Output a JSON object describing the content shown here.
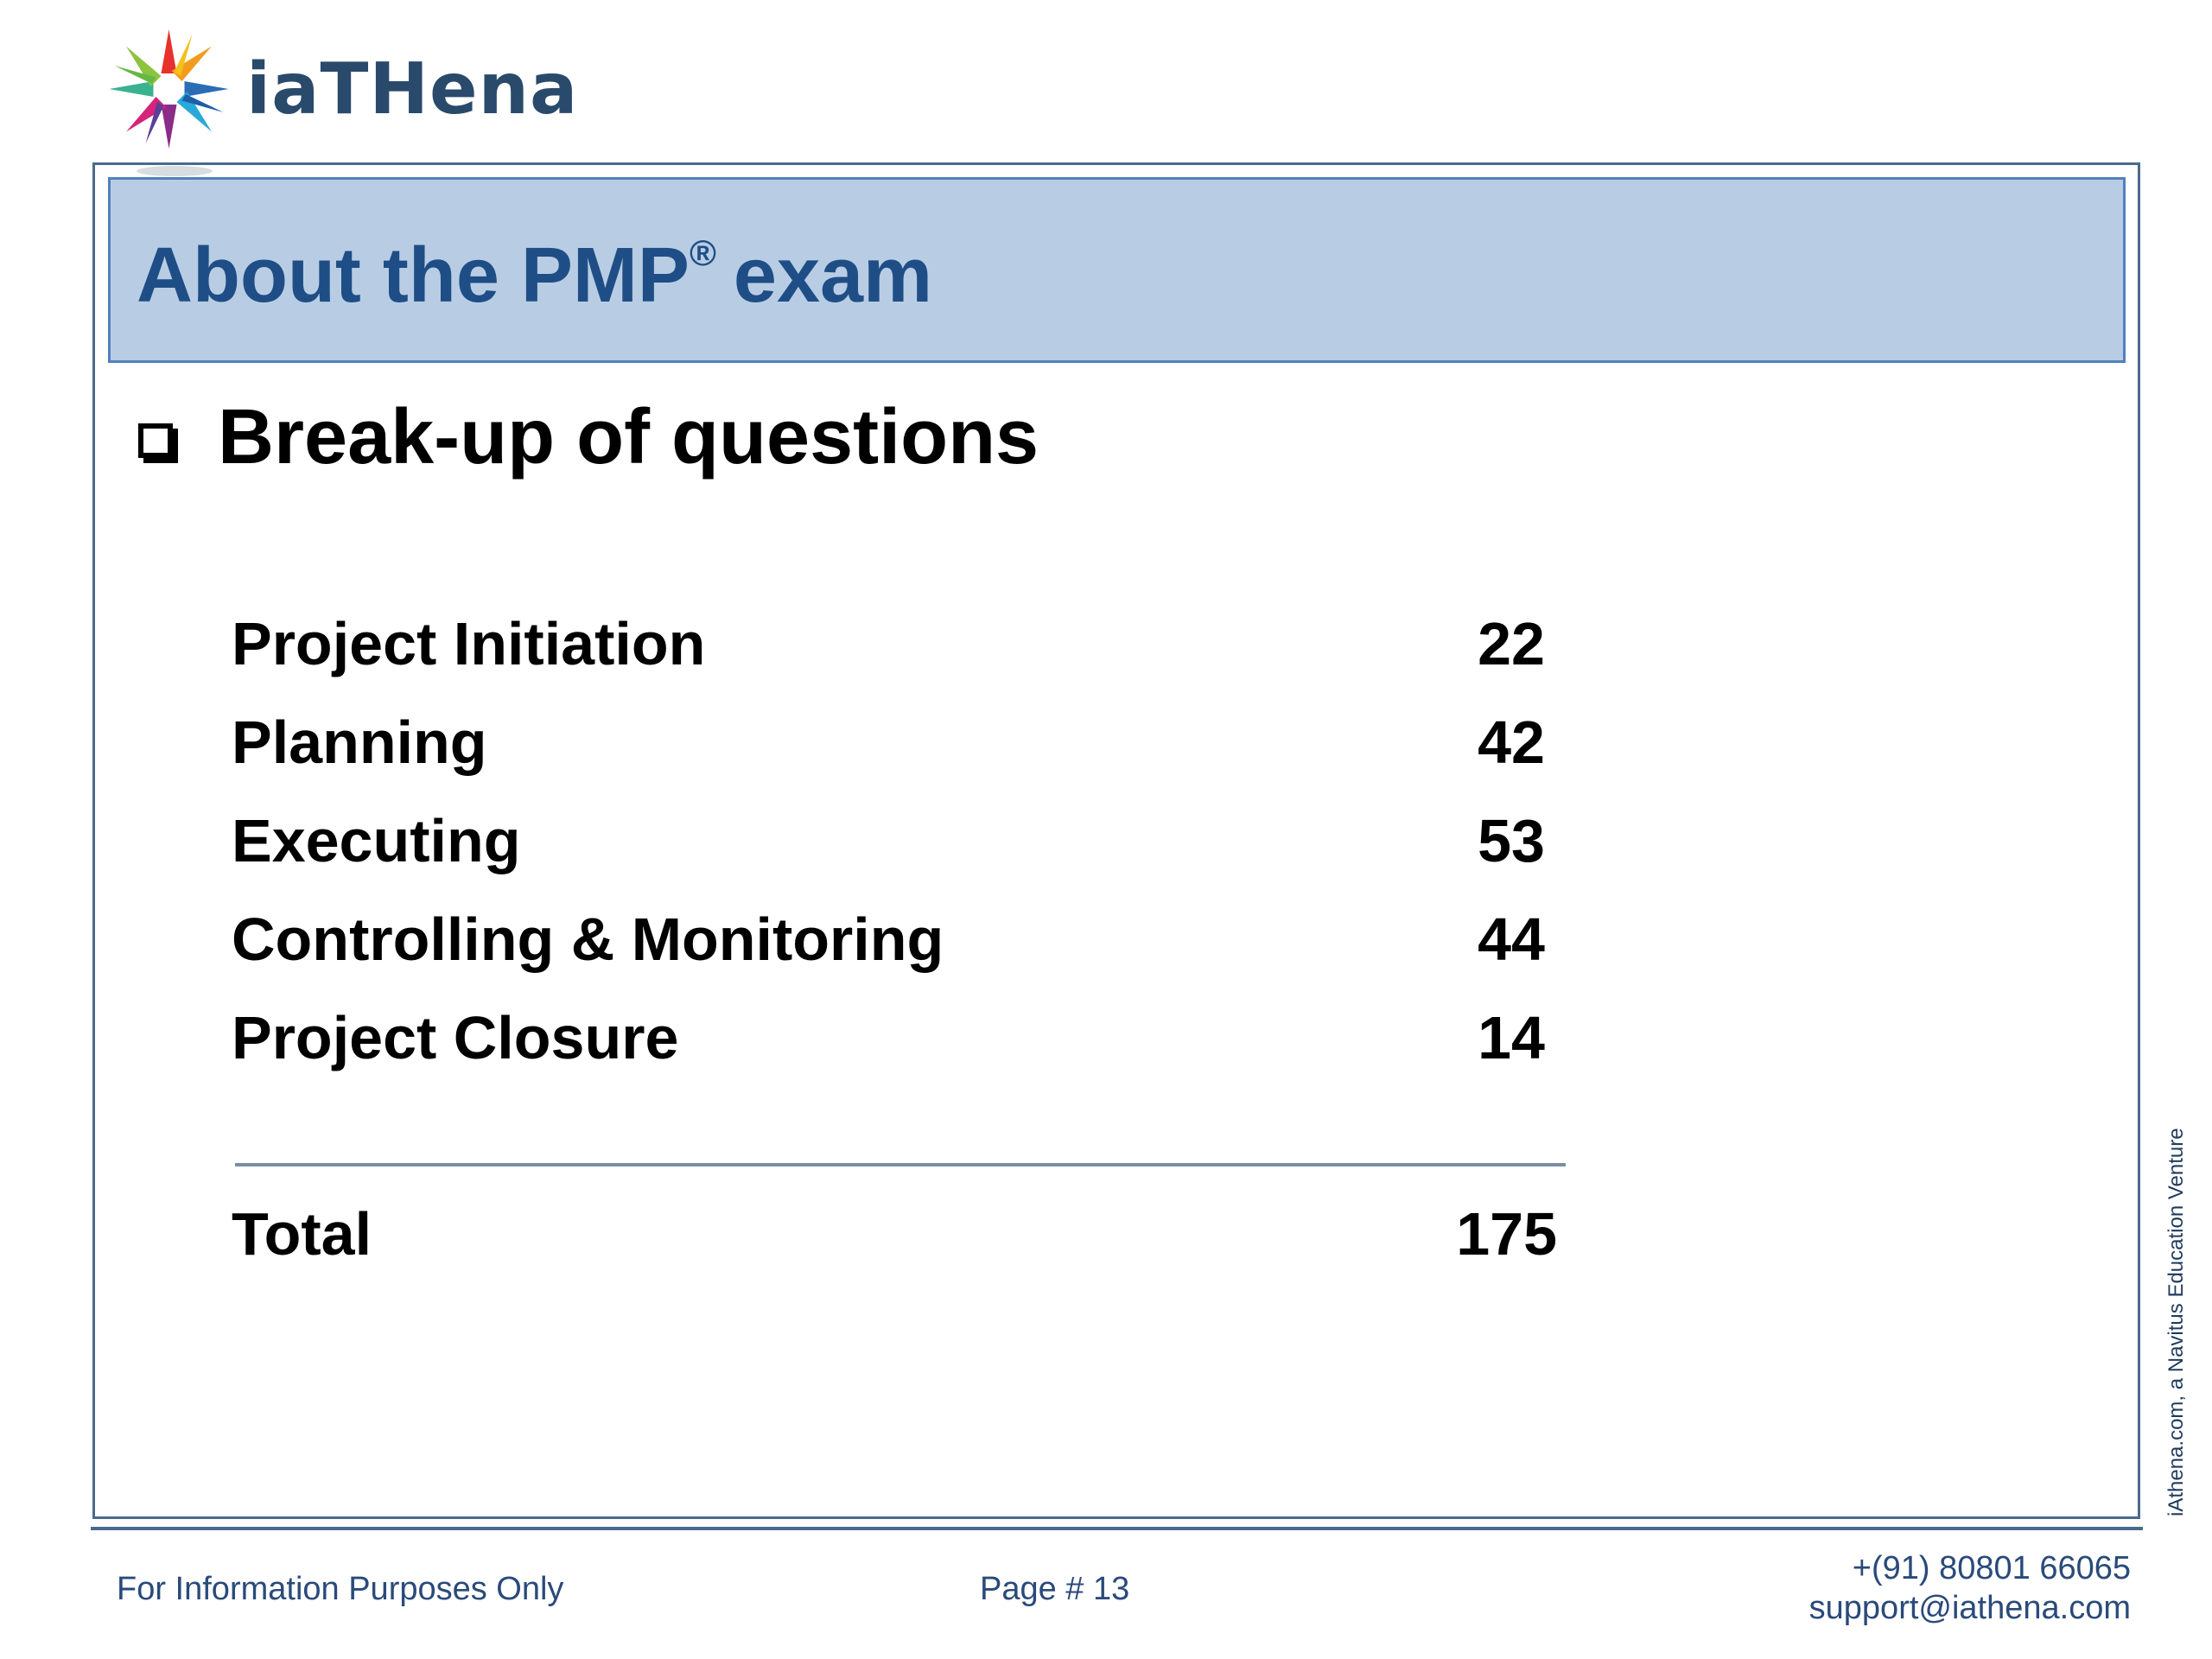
{
  "brand": {
    "name": "iaTHena"
  },
  "slide": {
    "title": "About the PMP",
    "title_mark": "®",
    "title_suffix": "exam",
    "bullet_heading": "Break-up of questions",
    "rows": [
      {
        "label": "Project Initiation",
        "value": "22"
      },
      {
        "label": "Planning",
        "value": "42"
      },
      {
        "label": "Executing",
        "value": "53"
      },
      {
        "label": "Controlling & Monitoring",
        "value": "44"
      },
      {
        "label": "Project Closure",
        "value": "14"
      }
    ],
    "total": {
      "label": "Total",
      "value": "175"
    }
  },
  "side_note": "iAthena.com, a Navitus Education Venture",
  "footer": {
    "disclaimer": "For Information Purposes Only",
    "page": "Page # 13",
    "phone": "+(91) 80801 66065",
    "email": "support@iathena.com"
  },
  "colors": {
    "title_band": "#b8cde4",
    "title_text": "#1f4e86",
    "frame": "#4a6a8c"
  }
}
